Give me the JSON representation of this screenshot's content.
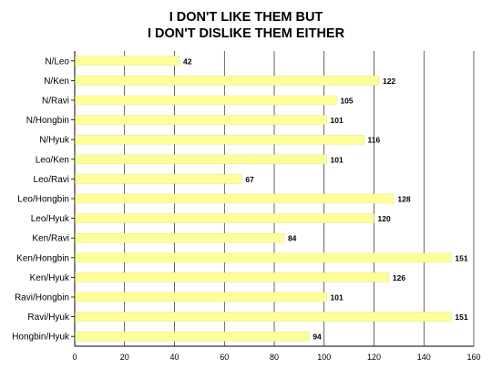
{
  "chart_data": {
    "type": "bar",
    "orientation": "horizontal",
    "title_lines": [
      "I DON'T LIKE THEM BUT",
      "I DON'T DISLIKE THEM EITHER"
    ],
    "categories": [
      "N/Leo",
      "N/Ken",
      "N/Ravi",
      "N/Hongbin",
      "N/Hyuk",
      "Leo/Ken",
      "Leo/Ravi",
      "Leo/Hongbin",
      "Leo/Hyuk",
      "Ken/Ravi",
      "Ken/Hongbin",
      "Ken/Hyuk",
      "Ravi/Hongbin",
      "Ravi/Hyuk",
      "Hongbin/Hyuk"
    ],
    "values": [
      42,
      122,
      105,
      101,
      116,
      101,
      67,
      128,
      120,
      84,
      151,
      126,
      101,
      151,
      94
    ],
    "xlim": [
      0,
      160
    ],
    "xticks": [
      0,
      20,
      40,
      60,
      80,
      100,
      120,
      140,
      160
    ],
    "grid": "vertical",
    "xlabel": "",
    "ylabel": "",
    "colors": {
      "bar_fill": "#ffff99",
      "bar_stroke": "#e6e680",
      "grid": "#000000",
      "text": "#000000"
    }
  }
}
